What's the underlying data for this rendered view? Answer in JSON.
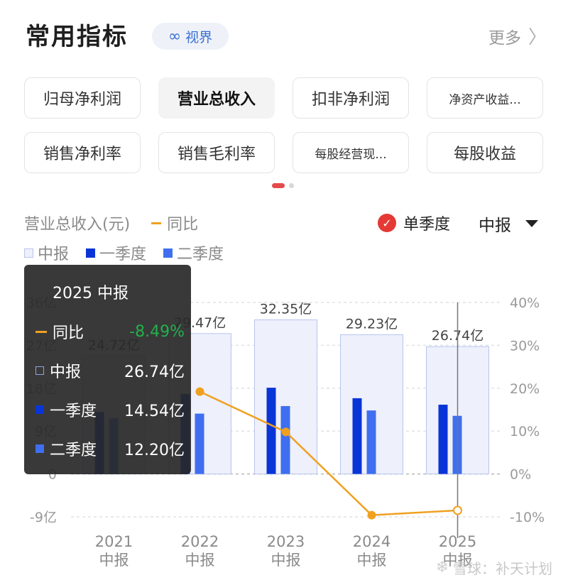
{
  "header": {
    "title": "常用指标",
    "vision_label": "视界",
    "vision_icon": "infinity-icon",
    "more_label": "更多",
    "more_icon": "chevron-right-icon"
  },
  "tabs": [
    {
      "label": "归母净利润",
      "active": false
    },
    {
      "label": "营业总收入",
      "active": true
    },
    {
      "label": "扣非净利润",
      "active": false
    },
    {
      "label": "净资产收益...",
      "active": false
    },
    {
      "label": "销售净利率",
      "active": false
    },
    {
      "label": "销售毛利率",
      "active": false
    },
    {
      "label": "每股经营现...",
      "active": false
    },
    {
      "label": "每股收益",
      "active": false
    }
  ],
  "controls": {
    "single_quarter_label": "单季度",
    "period_label": "中报"
  },
  "legend": {
    "metric_label": "营业总收入(元)",
    "yoy_label": "同比",
    "half_label": "中报",
    "q1_label": "一季度",
    "q2_label": "二季度"
  },
  "tooltip": {
    "title": "2025 中报",
    "yoy_label": "同比",
    "yoy_value": "-8.49%",
    "half_label": "中报",
    "half_value": "26.74亿",
    "q1_label": "一季度",
    "q1_value": "14.54亿",
    "q2_label": "二季度",
    "q2_value": "12.20亿"
  },
  "watermark": {
    "text": "雪球：补天计划",
    "icon": "snowball-icon"
  },
  "colors": {
    "half": "#eef0fb",
    "half_border": "#b9c4ee",
    "q1": "#0a35d6",
    "q2": "#3f6ff0",
    "yoy": "#f0a020",
    "accent": "#e53935"
  },
  "chart_data": {
    "type": "bar",
    "categories": [
      "2021\n中报",
      "2022\n中报",
      "2023\n中报",
      "2024\n中报",
      "2025\n中报"
    ],
    "series": [
      {
        "name": "中报",
        "values": [
          24.72,
          29.47,
          32.35,
          29.23,
          26.74
        ],
        "labels": [
          "24.72亿",
          "29.47亿",
          "32.35亿",
          "29.23亿",
          "26.74亿"
        ]
      },
      {
        "name": "一季度",
        "values": [
          13.0,
          16.8,
          18.1,
          15.9,
          14.54
        ]
      },
      {
        "name": "二季度",
        "values": [
          11.72,
          12.67,
          14.25,
          13.33,
          12.2
        ]
      },
      {
        "name": "同比",
        "axis": "right",
        "values": [
          null,
          19.2,
          9.8,
          -9.6,
          -8.49
        ]
      }
    ],
    "y_left": {
      "ticks": [
        -9,
        0,
        9,
        18,
        27,
        36
      ],
      "tick_labels": [
        "-9亿",
        "0",
        "9亿",
        "18亿",
        "27亿",
        "36亿"
      ],
      "range": [
        -9,
        36
      ]
    },
    "y_right": {
      "ticks": [
        -10,
        0,
        10,
        20,
        30,
        40
      ],
      "tick_labels": [
        "-10%",
        "0%",
        "10%",
        "20%",
        "30%",
        "40%"
      ],
      "range": [
        -10,
        40
      ]
    },
    "grid": true,
    "selected_index": 4
  }
}
